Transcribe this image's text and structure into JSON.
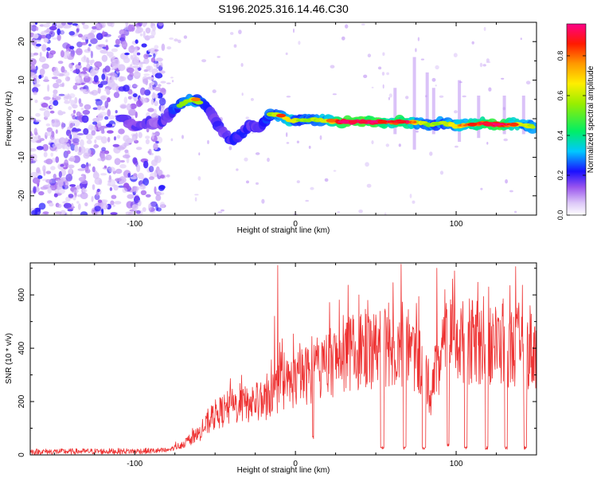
{
  "title": "S196.2025.316.14.46.C30",
  "colors": {
    "line": "#ee3333",
    "axis": "#000000",
    "scatter": "#7722ee"
  },
  "chart_data": [
    {
      "type": "heatmap",
      "xlabel": "Height of straight line (km)",
      "ylabel": "Frequency (Hz)",
      "xlim": [
        -165,
        150
      ],
      "ylim": [
        -25,
        25
      ],
      "x_ticks": [
        -100,
        0,
        100
      ],
      "y_ticks": [
        -20,
        -10,
        0,
        10,
        20
      ],
      "colorbar": {
        "label": "Normalized spectral amplitude",
        "range": [
          0,
          0.96
        ],
        "ticks": [
          "0.0",
          "0.2",
          "0.4",
          "0.6",
          "0.8"
        ],
        "stops": [
          {
            "v": 0.0,
            "color": "#ffffff"
          },
          {
            "v": 0.06,
            "color": "#ddc8f8"
          },
          {
            "v": 0.14,
            "color": "#9a55ee"
          },
          {
            "v": 0.22,
            "color": "#1a10ff"
          },
          {
            "v": 0.32,
            "color": "#00c8ff"
          },
          {
            "v": 0.42,
            "color": "#00ee66"
          },
          {
            "v": 0.56,
            "color": "#99ee00"
          },
          {
            "v": 0.66,
            "color": "#ffee00"
          },
          {
            "v": 0.76,
            "color": "#ff9900"
          },
          {
            "v": 0.86,
            "color": "#ff1a00"
          },
          {
            "v": 0.96,
            "color": "#ff0088"
          }
        ]
      },
      "ridge": [
        {
          "x": -108,
          "f": 0.5,
          "a": 0.3
        },
        {
          "x": -100,
          "f": -2.0,
          "a": 0.28
        },
        {
          "x": -92,
          "f": -1.0,
          "a": 0.3
        },
        {
          "x": -84,
          "f": -1.5,
          "a": 0.28
        },
        {
          "x": -76,
          "f": 2.0,
          "a": 0.4
        },
        {
          "x": -70,
          "f": 4.0,
          "a": 0.48
        },
        {
          "x": -64,
          "f": 5.0,
          "a": 0.52
        },
        {
          "x": -58,
          "f": 4.0,
          "a": 0.42
        },
        {
          "x": -52,
          "f": 1.0,
          "a": 0.3
        },
        {
          "x": -46,
          "f": -3.0,
          "a": 0.34
        },
        {
          "x": -40,
          "f": -5.5,
          "a": 0.38
        },
        {
          "x": -34,
          "f": -4.0,
          "a": 0.36
        },
        {
          "x": -28,
          "f": -1.5,
          "a": 0.36
        },
        {
          "x": -22,
          "f": -2.5,
          "a": 0.32
        },
        {
          "x": -16,
          "f": 1.0,
          "a": 0.44
        },
        {
          "x": -10,
          "f": 1.0,
          "a": 0.52
        },
        {
          "x": -4,
          "f": -0.5,
          "a": 0.58
        },
        {
          "x": 4,
          "f": -0.5,
          "a": 0.46
        },
        {
          "x": 12,
          "f": -0.3,
          "a": 0.5
        },
        {
          "x": 20,
          "f": -0.5,
          "a": 0.56
        },
        {
          "x": 28,
          "f": -0.8,
          "a": 0.8
        },
        {
          "x": 36,
          "f": -0.8,
          "a": 0.86
        },
        {
          "x": 44,
          "f": -0.8,
          "a": 0.84
        },
        {
          "x": 52,
          "f": -0.8,
          "a": 0.82
        },
        {
          "x": 60,
          "f": -0.8,
          "a": 0.7
        },
        {
          "x": 68,
          "f": -0.8,
          "a": 0.84
        },
        {
          "x": 76,
          "f": -1.0,
          "a": 0.54
        },
        {
          "x": 84,
          "f": -1.5,
          "a": 0.46
        },
        {
          "x": 92,
          "f": -1.0,
          "a": 0.5
        },
        {
          "x": 100,
          "f": -2.0,
          "a": 0.56
        },
        {
          "x": 108,
          "f": -1.5,
          "a": 0.66
        },
        {
          "x": 116,
          "f": -1.2,
          "a": 0.72
        },
        {
          "x": 124,
          "f": -1.5,
          "a": 0.82
        },
        {
          "x": 132,
          "f": -1.5,
          "a": 0.74
        },
        {
          "x": 140,
          "f": -1.5,
          "a": 0.56
        },
        {
          "x": 148,
          "f": -2.0,
          "a": 0.5
        }
      ],
      "hot_spots": [
        {
          "x": 36,
          "f": -0.8,
          "a": 0.9
        },
        {
          "x": 42,
          "f": -0.8,
          "a": 0.9
        },
        {
          "x": 54,
          "f": -0.8,
          "a": 0.86
        },
        {
          "x": 66,
          "f": -0.8,
          "a": 0.88
        },
        {
          "x": -9,
          "f": 0.8,
          "a": 0.84
        },
        {
          "x": 110,
          "f": -1.5,
          "a": 0.86
        },
        {
          "x": 120,
          "f": -1.5,
          "a": 0.9
        },
        {
          "x": 136,
          "f": -1.5,
          "a": 0.84
        },
        {
          "x": -62,
          "f": 5.0,
          "a": 0.78
        },
        {
          "x": 22,
          "f": -0.5,
          "a": 0.8
        }
      ],
      "vertical_streaks": [
        {
          "x": 62,
          "f0": -4,
          "f1": 8
        },
        {
          "x": 74,
          "f0": -8,
          "f1": 16
        },
        {
          "x": 86,
          "f0": -4,
          "f1": 8
        },
        {
          "x": 102,
          "f0": -6,
          "f1": 10
        },
        {
          "x": 114,
          "f0": -5,
          "f1": 6
        },
        {
          "x": 130,
          "f0": -4,
          "f1": 6
        },
        {
          "x": 142,
          "f0": -4,
          "f1": 6
        },
        {
          "x": 82,
          "f0": -3,
          "f1": 12
        }
      ],
      "noise_region": {
        "x0": -165,
        "x1": -82,
        "density": 900
      }
    },
    {
      "type": "line",
      "xlabel": "Height of straight line (km)",
      "ylabel": "SNR (10 * v/v)",
      "xlim": [
        -165,
        150
      ],
      "ylim": [
        0,
        720
      ],
      "x_ticks": [
        -100,
        0,
        100
      ],
      "y_ticks": [
        0,
        200,
        400,
        600
      ],
      "series": [
        {
          "name": "SNR",
          "envelope": [
            {
              "x": -165,
              "y": 12
            },
            {
              "x": -100,
              "y": 14
            },
            {
              "x": -80,
              "y": 16
            },
            {
              "x": -70,
              "y": 40
            },
            {
              "x": -60,
              "y": 80
            },
            {
              "x": -50,
              "y": 150
            },
            {
              "x": -40,
              "y": 180
            },
            {
              "x": -30,
              "y": 190
            },
            {
              "x": -20,
              "y": 200
            },
            {
              "x": -10,
              "y": 250
            },
            {
              "x": 0,
              "y": 280
            },
            {
              "x": 10,
              "y": 310
            },
            {
              "x": 20,
              "y": 340
            },
            {
              "x": 30,
              "y": 370
            },
            {
              "x": 40,
              "y": 390
            },
            {
              "x": 50,
              "y": 400
            },
            {
              "x": 60,
              "y": 410
            },
            {
              "x": 70,
              "y": 400
            },
            {
              "x": 80,
              "y": 330
            },
            {
              "x": 84,
              "y": 230
            },
            {
              "x": 88,
              "y": 340
            },
            {
              "x": 95,
              "y": 430
            },
            {
              "x": 110,
              "y": 420
            },
            {
              "x": 130,
              "y": 410
            },
            {
              "x": 150,
              "y": 390
            }
          ],
          "spikes": [
            {
              "x": -11,
              "y": 710
            },
            {
              "x": -13,
              "y": 520
            },
            {
              "x": 88,
              "y": 700
            },
            {
              "x": 99,
              "y": 690
            },
            {
              "x": 93,
              "y": 620
            },
            {
              "x": 110,
              "y": 580
            },
            {
              "x": 139,
              "y": 570
            },
            {
              "x": 146,
              "y": 560
            },
            {
              "x": 45,
              "y": 580
            },
            {
              "x": 58,
              "y": 570
            }
          ],
          "dips": [
            {
              "x": 54,
              "w": 2.5,
              "y": 20
            },
            {
              "x": 68,
              "w": 2.0,
              "y": 20
            },
            {
              "x": 80,
              "w": 2.5,
              "y": 20
            },
            {
              "x": 95,
              "w": 1.5,
              "y": 30
            },
            {
              "x": 106,
              "w": 2.0,
              "y": 20
            },
            {
              "x": 119,
              "w": 2.0,
              "y": 20
            },
            {
              "x": 131,
              "w": 2.0,
              "y": 20
            },
            {
              "x": 143,
              "w": 2.0,
              "y": 20
            },
            {
              "x": 11,
              "w": 1.0,
              "y": 60
            }
          ]
        }
      ]
    }
  ]
}
